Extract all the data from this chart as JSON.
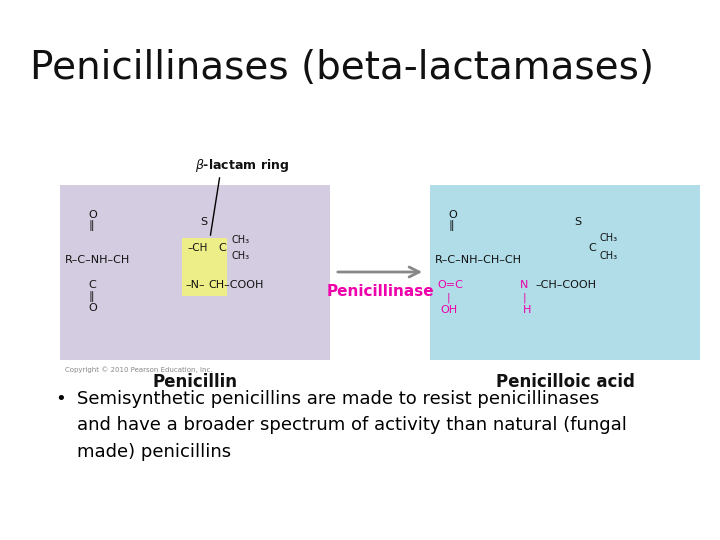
{
  "title": "Penicillinases (beta-lactamases)",
  "title_fontsize": 28,
  "title_color": "#111111",
  "title_weight": "normal",
  "background_color": "#ffffff",
  "bullet_line1": "Semisynthetic penicillins are made to resist penicillinases",
  "bullet_line2": "and have a broader spectrum of activity than natural (fungal",
  "bullet_line3": "made) penicillins",
  "bullet_fontsize": 13,
  "bullet_color": "#000000",
  "left_box_color": "#d4cce0",
  "right_box_color": "#b0dde8",
  "yellow_color": "#eeee88",
  "pink_color": "#ee00aa",
  "arrow_color": "#888888",
  "text_color": "#111111",
  "label_color": "#111111",
  "copyright": "Copyright © 2010 Pearson Education, Inc."
}
